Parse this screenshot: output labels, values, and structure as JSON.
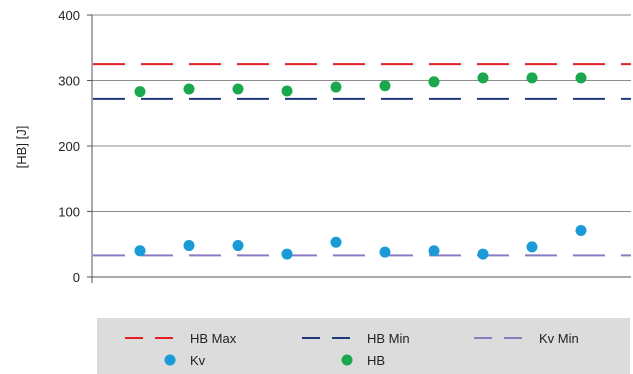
{
  "chart_data": {
    "type": "scatter",
    "title": "",
    "xlabel": "",
    "ylabel": "[HB] [J]",
    "ylim": [
      0,
      400
    ],
    "yticks": [
      0,
      100,
      200,
      300,
      400
    ],
    "grid": true,
    "legend_position": "bottom",
    "x": [
      1,
      2,
      3,
      4,
      5,
      6,
      7,
      8,
      9,
      10
    ],
    "reference_lines": [
      {
        "name": "HB Max",
        "value": 325,
        "color": "#e31e24",
        "dash": "dashed"
      },
      {
        "name": "HB Min",
        "value": 272,
        "color": "#1f3a7a",
        "dash": "dashed"
      },
      {
        "name": "Kv Min",
        "value": 33,
        "color": "#8b7bbf",
        "dash": "dashed"
      }
    ],
    "series": [
      {
        "name": "Kv",
        "color": "#1a9ad6",
        "values": [
          40,
          48,
          48,
          35,
          53,
          38,
          40,
          35,
          46,
          71
        ]
      },
      {
        "name": "HB",
        "color": "#1aa84f",
        "values": [
          283,
          287,
          287,
          284,
          290,
          292,
          298,
          304,
          304,
          304
        ]
      }
    ],
    "legend": [
      {
        "name": "HB Max",
        "kind": "line",
        "color": "#e31e24"
      },
      {
        "name": "HB Min",
        "kind": "line",
        "color": "#1f3a7a"
      },
      {
        "name": "Kv Min",
        "kind": "line",
        "color": "#8b7bbf"
      },
      {
        "name": "Kv",
        "kind": "marker",
        "color": "#1a9ad6"
      },
      {
        "name": "HB",
        "kind": "marker",
        "color": "#1aa84f"
      }
    ]
  }
}
